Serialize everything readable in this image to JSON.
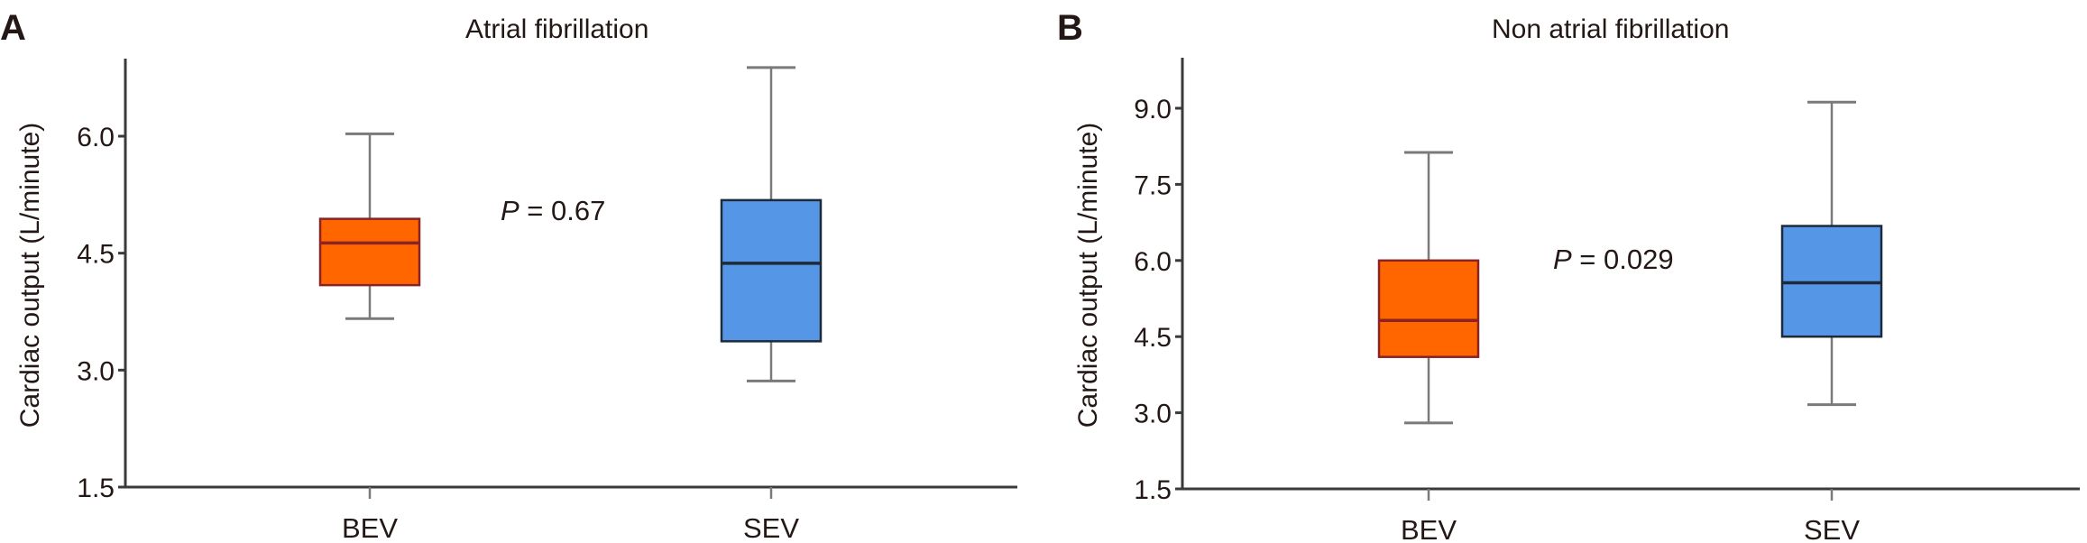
{
  "colors": {
    "bev": "#FF6600",
    "bev_edge": "#8B2323",
    "sev": "#5596E6",
    "sev_edge": "#1C2A3A",
    "whisker": "#7A7A7A",
    "axis": "#3A3A3A"
  },
  "chart_data": [
    {
      "type": "box",
      "panel": "A",
      "title": "Atrial fibrillation",
      "ylabel": "Cardiac output (L/minute)",
      "xlabel": "",
      "ylim": [
        1.5,
        7.0
      ],
      "yticks": [
        "1.5",
        "3.0",
        "4.5",
        "6.0"
      ],
      "categories": [
        "BEV",
        "SEV"
      ],
      "boxes": [
        {
          "category": "BEV",
          "min": 3.66,
          "q1": 4.09,
          "median": 4.63,
          "q3": 4.94,
          "max": 6.03,
          "color": "#FF6600"
        },
        {
          "category": "SEV",
          "min": 2.86,
          "q1": 3.37,
          "median": 4.37,
          "q3": 5.18,
          "max": 6.88,
          "color": "#5596E6"
        }
      ],
      "annotation": {
        "p_label": "P",
        "p_value": " = 0.67"
      },
      "grid": false
    },
    {
      "type": "box",
      "panel": "B",
      "title": "Non atrial fibrillation",
      "ylabel": "Cardiac output (L/minute)",
      "xlabel": "",
      "ylim": [
        1.5,
        10.0
      ],
      "yticks": [
        "1.5",
        "3.0",
        "4.5",
        "6.0",
        "7.5",
        "9.0"
      ],
      "categories": [
        "BEV",
        "SEV"
      ],
      "boxes": [
        {
          "category": "BEV",
          "min": 2.8,
          "q1": 4.1,
          "median": 4.82,
          "q3": 6.0,
          "max": 8.13,
          "color": "#FF6600"
        },
        {
          "category": "SEV",
          "min": 3.16,
          "q1": 4.5,
          "median": 5.56,
          "q3": 6.68,
          "max": 9.12,
          "color": "#5596E6"
        }
      ],
      "annotation": {
        "p_label": "P",
        "p_value": " = 0.029"
      },
      "grid": false
    }
  ]
}
